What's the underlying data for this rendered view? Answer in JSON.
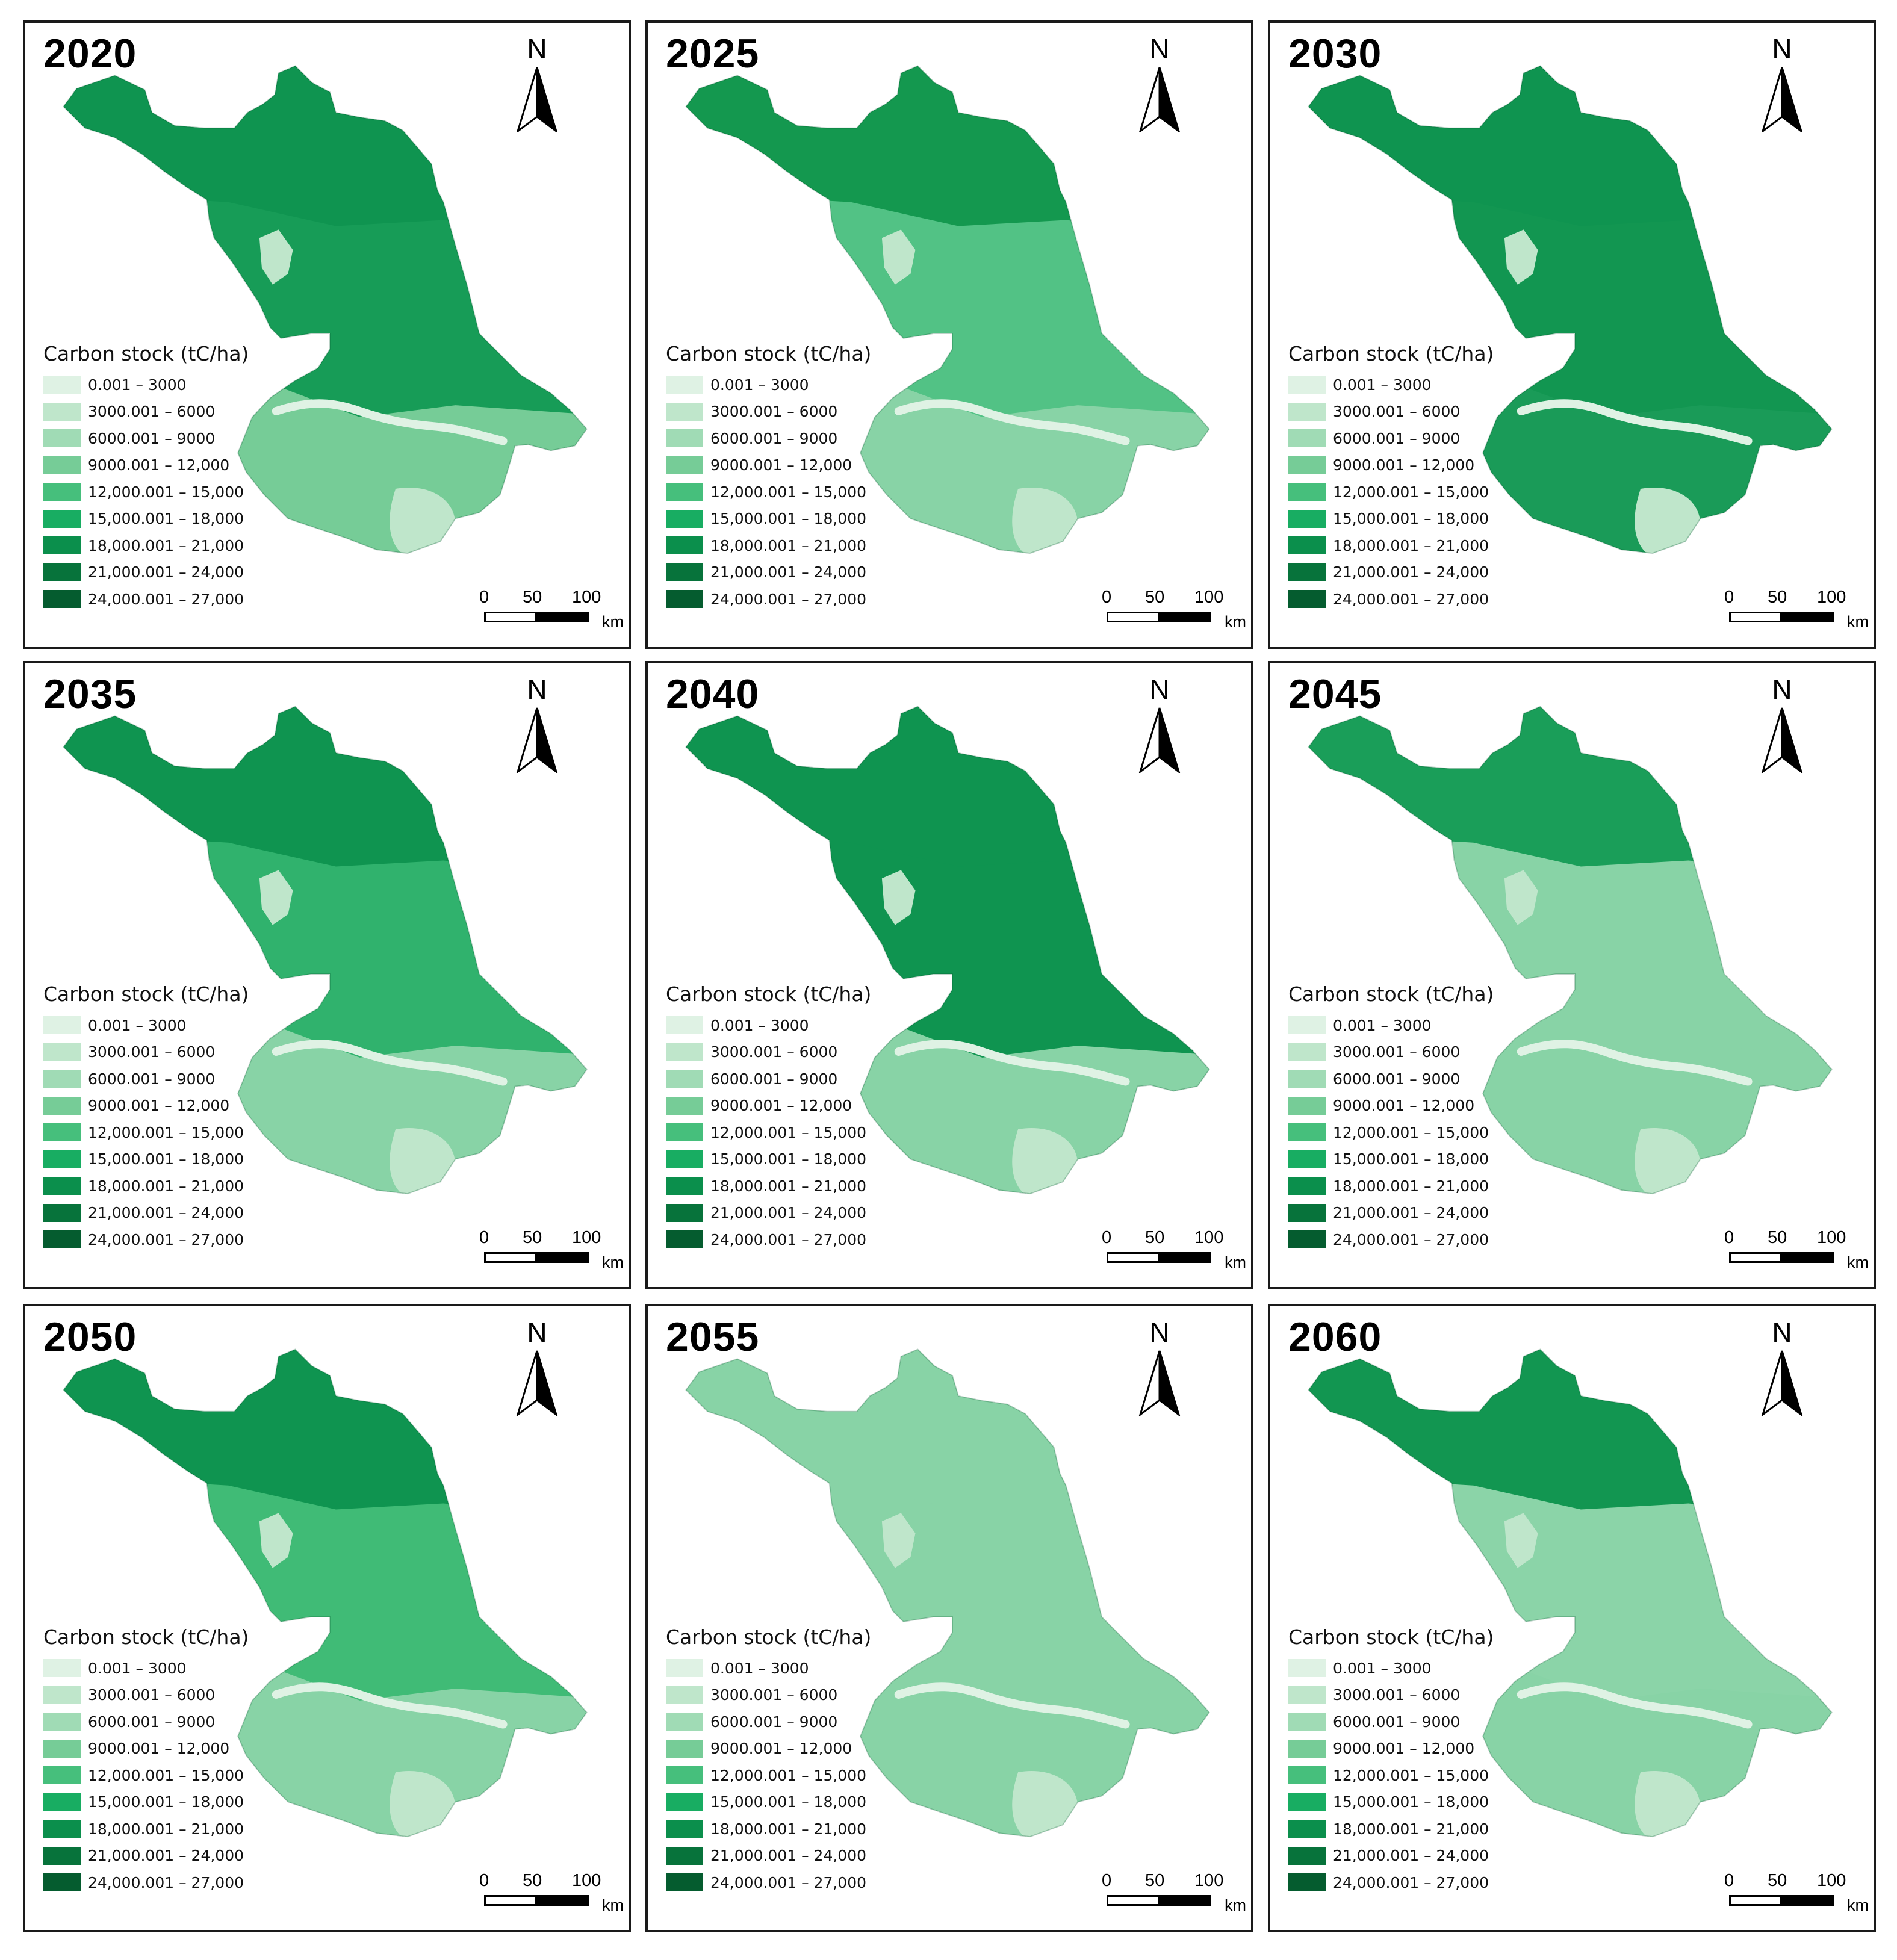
{
  "figure": {
    "legend_title": "Carbon stock (tC/ha)",
    "north_label": "N",
    "scale": {
      "ticks": [
        "0",
        "50",
        "100"
      ],
      "unit": "km"
    }
  },
  "legend_classes": [
    {
      "label": "0.001 – 3000",
      "color": "#dff2e4"
    },
    {
      "label": "3000.001 – 6000",
      "color": "#bfe6cb"
    },
    {
      "label": "6000.001 – 9000",
      "color": "#a0dbb5"
    },
    {
      "label": "9000.001 – 12,000",
      "color": "#76cc97"
    },
    {
      "label": "12,000.001 – 15,000",
      "color": "#46bf7c"
    },
    {
      "label": "15,000.001 – 18,000",
      "color": "#18ad62"
    },
    {
      "label": "18,000.001 – 21,000",
      "color": "#0b8f4c"
    },
    {
      "label": "21,000.001 – 24,000",
      "color": "#07733b"
    },
    {
      "label": "24,000.001 – 27,000",
      "color": "#055c2f"
    }
  ],
  "panels": [
    {
      "year": "2020",
      "zones": {
        "north": "#0f9450",
        "middle": "#179c57",
        "south": "#76cc97",
        "lake": "#bfe6cb"
      }
    },
    {
      "year": "2025",
      "zones": {
        "north": "#14984f",
        "middle": "#52c285",
        "south": "#88d3a6",
        "lake": "#bfe6cb"
      }
    },
    {
      "year": "2030",
      "zones": {
        "north": "#0f9450",
        "middle": "#129651",
        "south": "#1a9b58",
        "lake": "#bfe6cb"
      }
    },
    {
      "year": "2035",
      "zones": {
        "north": "#0f9450",
        "middle": "#30b26d",
        "south": "#88d3a6",
        "lake": "#bfe6cb"
      }
    },
    {
      "year": "2040",
      "zones": {
        "north": "#0f9450",
        "middle": "#0f9450",
        "south": "#88d3a6",
        "lake": "#bfe6cb"
      }
    },
    {
      "year": "2045",
      "zones": {
        "north": "#1a9e59",
        "middle": "#88d3a6",
        "south": "#88d3a6",
        "lake": "#bfe6cb"
      }
    },
    {
      "year": "2050",
      "zones": {
        "north": "#0f9450",
        "middle": "#40bb76",
        "south": "#88d3a6",
        "lake": "#bfe6cb"
      }
    },
    {
      "year": "2055",
      "zones": {
        "north": "#88d3a6",
        "middle": "#88d3a6",
        "south": "#88d3a6",
        "lake": "#bfe6cb"
      }
    },
    {
      "year": "2060",
      "zones": {
        "north": "#129651",
        "middle": "#8bd4a8",
        "south": "#88d3a6",
        "lake": "#bfe6cb"
      }
    }
  ]
}
